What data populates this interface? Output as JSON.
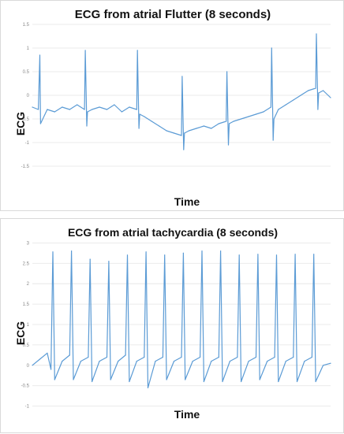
{
  "chart_data": [
    {
      "type": "line",
      "title": "ECG from atrial Flutter (8 seconds)",
      "xlabel": "Time",
      "ylabel": "ECG",
      "ylim": [
        -2,
        1.5
      ],
      "yticks": [
        1.5,
        1,
        0.5,
        0,
        -0.5,
        -1,
        -1.5
      ],
      "ytick_labels": [
        "1.5",
        "1",
        "0.5",
        "0",
        "-0.5",
        "-1",
        "-1.5"
      ],
      "grid": true,
      "legend": "none",
      "color": "#5b9bd5",
      "x": [
        0.0,
        0.16,
        0.2,
        0.22,
        0.4,
        0.6,
        0.8,
        1.0,
        1.2,
        1.4,
        1.42,
        1.46,
        1.48,
        1.6,
        1.8,
        2.0,
        2.2,
        2.4,
        2.6,
        2.8,
        2.82,
        2.86,
        2.88,
        3.0,
        3.2,
        3.4,
        3.6,
        3.8,
        4.0,
        4.02,
        4.06,
        4.08,
        4.2,
        4.4,
        4.6,
        4.8,
        5.0,
        5.2,
        5.22,
        5.26,
        5.28,
        5.4,
        5.6,
        5.8,
        6.0,
        6.2,
        6.4,
        6.42,
        6.46,
        6.48,
        6.6,
        6.8,
        7.0,
        7.2,
        7.4,
        7.6,
        7.62,
        7.66,
        7.68,
        7.8,
        8.0
      ],
      "values": [
        -0.25,
        -0.3,
        0.85,
        -0.6,
        -0.3,
        -0.35,
        -0.25,
        -0.3,
        -0.2,
        -0.3,
        0.95,
        -0.65,
        -0.35,
        -0.3,
        -0.25,
        -0.3,
        -0.2,
        -0.35,
        -0.25,
        -0.3,
        0.95,
        -0.7,
        -0.4,
        -0.45,
        -0.55,
        -0.65,
        -0.75,
        -0.8,
        -0.85,
        0.4,
        -1.15,
        -0.8,
        -0.75,
        -0.7,
        -0.65,
        -0.7,
        -0.6,
        -0.55,
        0.5,
        -1.05,
        -0.6,
        -0.55,
        -0.5,
        -0.45,
        -0.4,
        -0.35,
        -0.25,
        1.0,
        -0.95,
        -0.5,
        -0.3,
        -0.2,
        -0.1,
        0.0,
        0.1,
        0.15,
        1.3,
        -0.3,
        0.05,
        0.1,
        -0.05
      ]
    },
    {
      "type": "line",
      "title": "ECG from atrial tachycardia (8 seconds)",
      "xlabel": "Time",
      "ylabel": "ECG",
      "ylim": [
        -1.2,
        3.2
      ],
      "yticks": [
        3,
        2.5,
        2,
        1.5,
        1,
        0.5,
        0,
        -0.5,
        -1
      ],
      "ytick_labels": [
        "3",
        "2.5",
        "2",
        "1.5",
        "1",
        "0.5",
        "0",
        "-0.5",
        "-1"
      ],
      "grid": true,
      "legend": "none",
      "color": "#5b9bd5",
      "x": [
        0.0,
        0.2,
        0.4,
        0.5,
        0.55,
        0.6,
        0.8,
        1.0,
        1.05,
        1.1,
        1.3,
        1.5,
        1.55,
        1.6,
        1.8,
        2.0,
        2.05,
        2.1,
        2.3,
        2.5,
        2.55,
        2.6,
        2.8,
        3.0,
        3.05,
        3.1,
        3.3,
        3.5,
        3.55,
        3.6,
        3.8,
        4.0,
        4.05,
        4.1,
        4.3,
        4.5,
        4.55,
        4.6,
        4.8,
        5.0,
        5.05,
        5.1,
        5.3,
        5.5,
        5.55,
        5.6,
        5.8,
        6.0,
        6.05,
        6.1,
        6.3,
        6.5,
        6.55,
        6.6,
        6.8,
        7.0,
        7.05,
        7.1,
        7.3,
        7.5,
        7.55,
        7.6,
        7.8,
        8.0
      ],
      "values": [
        0.0,
        0.15,
        0.3,
        -0.1,
        2.78,
        -0.35,
        0.1,
        0.25,
        2.8,
        -0.35,
        0.1,
        0.2,
        2.6,
        -0.4,
        0.1,
        0.2,
        2.55,
        -0.35,
        0.1,
        0.25,
        2.7,
        -0.4,
        0.1,
        0.2,
        2.78,
        -0.55,
        0.1,
        0.2,
        2.7,
        -0.35,
        0.1,
        0.2,
        2.75,
        -0.35,
        0.1,
        0.2,
        2.8,
        -0.4,
        0.1,
        0.2,
        2.8,
        -0.4,
        0.1,
        0.2,
        2.7,
        -0.4,
        0.1,
        0.2,
        2.72,
        -0.35,
        0.1,
        0.2,
        2.7,
        -0.4,
        0.1,
        0.2,
        2.72,
        -0.4,
        0.1,
        0.2,
        2.72,
        -0.4,
        0.0,
        0.05
      ]
    }
  ]
}
